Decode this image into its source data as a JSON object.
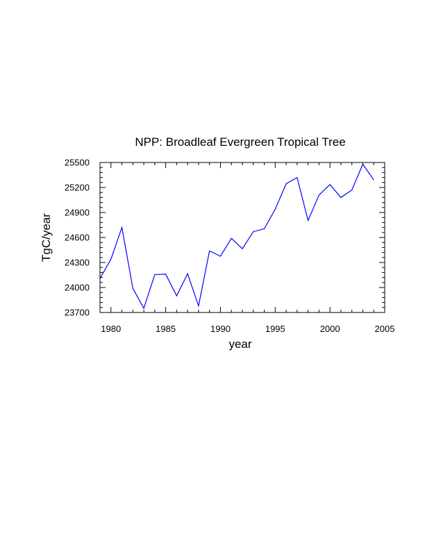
{
  "chart_data": {
    "type": "line",
    "title": "NPP: Broadleaf Evergreen Tropical Tree",
    "xlabel": "year",
    "ylabel": "TgC/year",
    "xlim": [
      1979,
      2005
    ],
    "ylim": [
      23700,
      25500
    ],
    "xticks": [
      1980,
      1985,
      1990,
      1995,
      2000,
      2005
    ],
    "yticks": [
      23700,
      24000,
      24300,
      24600,
      24900,
      25200,
      25500
    ],
    "line_color": "#0000ff",
    "series": [
      {
        "name": "NPP",
        "x": [
          1979,
          1980,
          1981,
          1982,
          1983,
          1984,
          1985,
          1986,
          1987,
          1988,
          1989,
          1990,
          1991,
          1992,
          1993,
          1994,
          1995,
          1996,
          1997,
          1998,
          1999,
          2000,
          2001,
          2002,
          2003,
          2004
        ],
        "values": [
          24110,
          24340,
          24720,
          23990,
          23750,
          24155,
          24160,
          23900,
          24165,
          23780,
          24440,
          24375,
          24590,
          24465,
          24670,
          24705,
          24940,
          25245,
          25320,
          24805,
          25110,
          25235,
          25080,
          25170,
          25480,
          25290
        ]
      }
    ]
  }
}
